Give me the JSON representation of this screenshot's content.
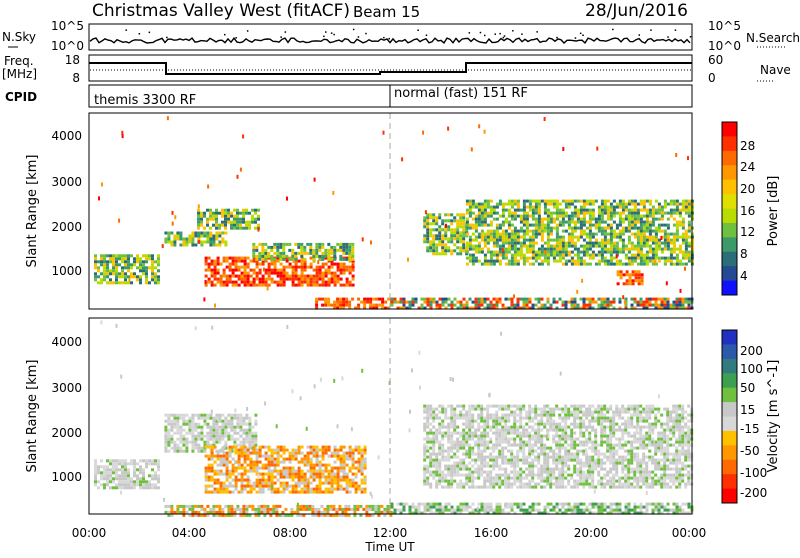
{
  "header": {
    "station": "Christmas Valley West (fitACF)",
    "beam": "Beam 15",
    "date": "28/Jun/2016"
  },
  "nsky_panel": {
    "left_label": "N.Sky",
    "left_ticks": [
      "10^5",
      "10^0"
    ],
    "right_ticks": [
      "10^5",
      "10^0"
    ],
    "right_label": "N.Search"
  },
  "freq_panel": {
    "left_label_line1": "Freq.",
    "left_label_line2": "[MHz]",
    "left_ticks": [
      "18",
      "8"
    ],
    "right_ticks": [
      "60",
      "0"
    ],
    "right_label": "Nave"
  },
  "cpid": {
    "label": "CPID",
    "mode1": "themis 3300 RF",
    "mode2": "normal (fast) 151 RF"
  },
  "axes": {
    "ylabel": "Slant Range [km]",
    "yticks": [
      "4000",
      "3000",
      "2000",
      "1000"
    ],
    "xticks": [
      "00:00",
      "04:00",
      "08:00",
      "12:00",
      "16:00",
      "20:00",
      "00:00"
    ],
    "xlabel": "Time UT"
  },
  "power_colorbar": {
    "label": "Power [dB]",
    "ticks": [
      "28",
      "24",
      "20",
      "16",
      "12",
      "8",
      "4"
    ],
    "colors": [
      "#ff0000",
      "#ff3000",
      "#ff6a00",
      "#ff9800",
      "#ffc000",
      "#e0e000",
      "#b8dc00",
      "#70c040",
      "#3c9a6a",
      "#2c6e78",
      "#244a94",
      "#1010ff"
    ]
  },
  "velocity_colorbar": {
    "label": "Velocity [m s^-1]",
    "ticks": [
      "200",
      "100",
      "50",
      "15",
      "-15",
      "-50",
      "-100",
      "-200"
    ],
    "colors": [
      "#2030c0",
      "#2a5aa8",
      "#307a80",
      "#3ca050",
      "#70c040",
      "#c8c8c8",
      "#d8d8d8",
      "#ffc000",
      "#ff9800",
      "#ff6a00",
      "#ff3000",
      "#ff0000"
    ]
  },
  "chart_data": {
    "type": "heatmap",
    "x_unit": "hours UT",
    "xlim": [
      0,
      24
    ],
    "ylim_km": [
      200,
      4500
    ],
    "power_regions": [
      {
        "t0": 0.2,
        "t1": 2.8,
        "r0": 800,
        "r1": 1400,
        "level": "mid"
      },
      {
        "t0": 3.0,
        "t1": 5.5,
        "r0": 1600,
        "r1": 1900,
        "level": "mid"
      },
      {
        "t0": 4.3,
        "t1": 6.7,
        "r0": 2000,
        "r1": 2400,
        "level": "mid"
      },
      {
        "t0": 4.6,
        "t1": 10.5,
        "r0": 700,
        "r1": 1350,
        "level": "high"
      },
      {
        "t0": 6.5,
        "t1": 10.5,
        "r0": 1300,
        "r1": 1650,
        "level": "mid"
      },
      {
        "t0": 9.0,
        "t1": 12.0,
        "r0": 200,
        "r1": 450,
        "level": "high"
      },
      {
        "t0": 12.0,
        "t1": 24.0,
        "r0": 200,
        "r1": 450,
        "level": "mixed"
      },
      {
        "t0": 13.3,
        "t1": 15.0,
        "r0": 1400,
        "r1": 2300,
        "level": "mid"
      },
      {
        "t0": 15.0,
        "t1": 24.0,
        "r0": 1200,
        "r1": 2600,
        "level": "mid"
      },
      {
        "t0": 21.0,
        "t1": 22.0,
        "r0": 750,
        "r1": 1050,
        "level": "high"
      }
    ],
    "velocity_regions": [
      {
        "t0": 0.2,
        "t1": 2.8,
        "r0": 800,
        "r1": 1400,
        "level": "low"
      },
      {
        "t0": 3.0,
        "t1": 6.7,
        "r0": 1600,
        "r1": 2400,
        "level": "low"
      },
      {
        "t0": 4.6,
        "t1": 11.0,
        "r0": 700,
        "r1": 1700,
        "level": "negative"
      },
      {
        "t0": 3.0,
        "t1": 12.0,
        "r0": 200,
        "r1": 400,
        "level": "mixed"
      },
      {
        "t0": 12.0,
        "t1": 24.0,
        "r0": 200,
        "r1": 450,
        "level": "positive"
      },
      {
        "t0": 13.3,
        "t1": 24.0,
        "r0": 800,
        "r1": 2600,
        "level": "low"
      }
    ]
  }
}
